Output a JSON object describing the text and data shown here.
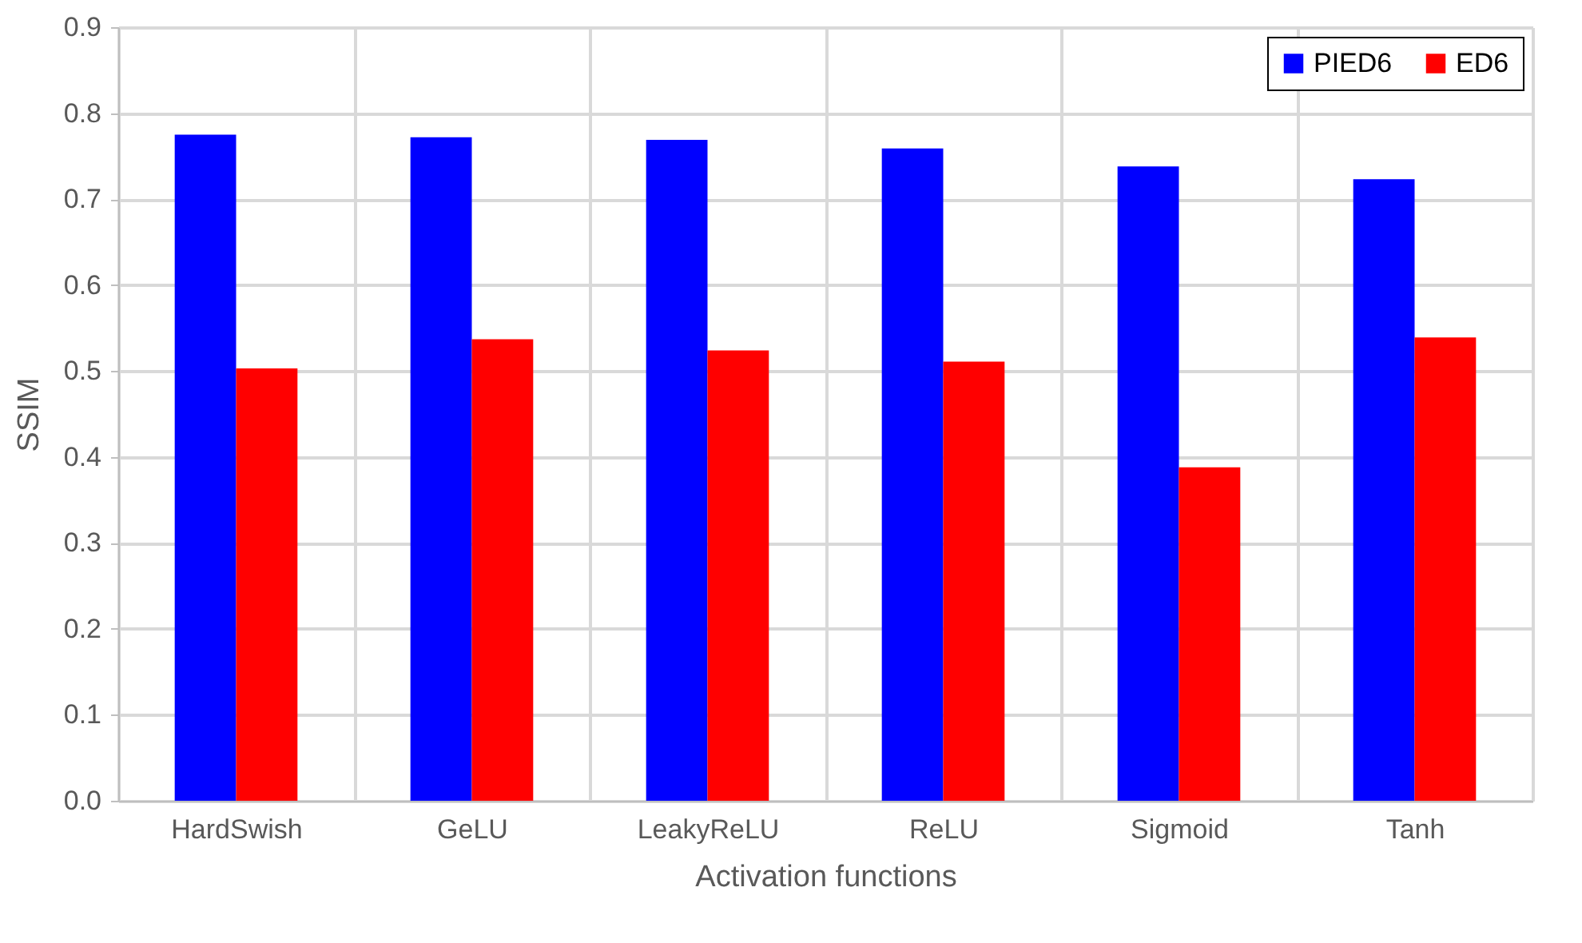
{
  "chart_data": {
    "type": "bar",
    "xlabel": "Activation functions",
    "ylabel": "SSIM",
    "categories": [
      "HardSwish",
      "GeLU",
      "LeakyReLU",
      "ReLU",
      "Sigmoid",
      "Tanh"
    ],
    "series": [
      {
        "name": "PIED6",
        "color": "#0000ff",
        "values": [
          0.775,
          0.772,
          0.769,
          0.759,
          0.738,
          0.723
        ]
      },
      {
        "name": "ED6",
        "color": "#ff0000",
        "values": [
          0.503,
          0.537,
          0.524,
          0.511,
          0.388,
          0.539
        ]
      }
    ],
    "ylim": [
      0,
      0.9
    ],
    "yticks": [
      {
        "value": 0,
        "label": "0.0"
      },
      0.1,
      0.2,
      0.3,
      0.4,
      0.5,
      0.6,
      0.7,
      0.8,
      0.9
    ],
    "grid": true,
    "legend": "top right"
  }
}
